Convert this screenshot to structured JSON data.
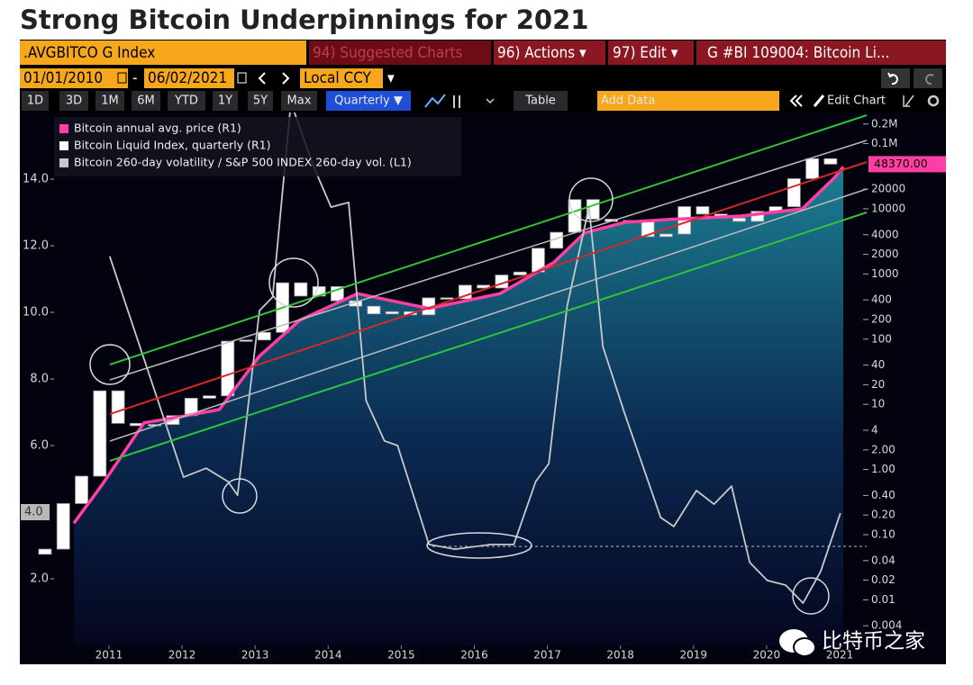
{
  "chart_data": {
    "type": "candlestick",
    "title": "Strong Bitcoin Underpinnings for 2021",
    "xlim": [
      2010.28,
      2021.87
    ],
    "xticks": [
      {
        "value": 2011.5,
        "label": "2011"
      },
      {
        "value": 2012.5,
        "label": "2012"
      },
      {
        "value": 2013.5,
        "label": "2013"
      },
      {
        "value": 2014.5,
        "label": "2014"
      },
      {
        "value": 2015.5,
        "label": "2015"
      },
      {
        "value": 2016.5,
        "label": "2016"
      },
      {
        "value": 2017.5,
        "label": "2017"
      },
      {
        "value": 2018.5,
        "label": "2018"
      },
      {
        "value": 2019.5,
        "label": "2019"
      },
      {
        "value": 2020.5,
        "label": "2020"
      },
      {
        "value": 2021.5,
        "label": "2021"
      }
    ],
    "ylim": [
      0,
      16
    ],
    "yticks": [
      {
        "value": 2,
        "label": "2.0"
      },
      {
        "value": 6,
        "label": "6.0"
      },
      {
        "value": 8,
        "label": "8.0"
      },
      {
        "value": 10,
        "label": "10.0"
      },
      {
        "value": 12,
        "label": "12.0"
      },
      {
        "value": 14,
        "label": "14.0"
      }
    ],
    "y2lim": [
      0.002,
      300000
    ],
    "y2log": true,
    "y2ticks": [
      {
        "value": 200000,
        "label": "0.2M"
      },
      {
        "value": 100000,
        "label": "0.1M"
      },
      20000,
      10000,
      4000,
      2000,
      1000,
      400,
      200,
      100,
      40,
      20,
      10,
      4,
      {
        "value": 2,
        "label": "2.00"
      },
      {
        "value": 1,
        "label": "1.00"
      },
      {
        "value": 0.4,
        "label": "0.40"
      },
      {
        "value": 0.2,
        "label": "0.20"
      },
      {
        "value": 0.1,
        "label": "0.10"
      },
      0.04,
      0.02,
      0.01,
      0.004
    ],
    "legend": "upper left",
    "series": [
      {
        "name": "Bitcoin annual avg. price (R1)",
        "type": "line",
        "axis": "y2",
        "color": "#ff3fa4",
        "x": [
          2011.02,
          2011.4,
          2011.98,
          2012.46,
          2013.01,
          2013.56,
          2014.11,
          2014.9,
          2015.88,
          2016.85,
          2017.59,
          2018.01,
          2018.56,
          2019.17,
          2020.15,
          2020.99,
          2021.43,
          2021.55
        ],
        "values": [
          0.15,
          0.57,
          5.2,
          6.4,
          8.3,
          55,
          195,
          500,
          295,
          500,
          1510,
          4270,
          6200,
          6870,
          7750,
          10000,
          30000,
          44000
        ]
      },
      {
        "name": "Bitcoin Liquid Index, quarterly (R1)",
        "type": "candlestick",
        "axis": "y2",
        "color": "#ffffff",
        "x": [
          2010.625,
          2010.875,
          2011.125,
          2011.375,
          2011.625,
          2011.875,
          2012.125,
          2012.375,
          2012.625,
          2012.875,
          2013.125,
          2013.375,
          2013.625,
          2013.875,
          2014.125,
          2014.375,
          2014.625,
          2014.875,
          2015.125,
          2015.375,
          2015.625,
          2015.875,
          2016.125,
          2016.375,
          2016.625,
          2016.875,
          2017.125,
          2017.375,
          2017.625,
          2017.875,
          2018.125,
          2018.375,
          2018.625,
          2018.875,
          2019.125,
          2019.375,
          2019.625,
          2019.875,
          2020.125,
          2020.375,
          2020.625,
          2020.875,
          2021.125,
          2021.375
        ],
        "open": [
          0.05,
          0.06,
          0.3,
          0.79,
          16.1,
          5.1,
          4.7,
          4.9,
          6.7,
          12.4,
          13.5,
          93,
          97,
          127,
          732,
          458,
          640,
          387,
          320,
          244,
          264,
          236,
          430,
          416,
          673,
          609,
          964,
          1071,
          2480,
          4360,
          13860,
          6930,
          6390,
          6630,
          3740,
          4100,
          10800,
          8290,
          7190,
          6420,
          9140,
          10780,
          28990,
          58800
        ],
        "close": [
          0.06,
          0.3,
          0.79,
          16.1,
          5.1,
          4.7,
          4.9,
          6.7,
          12.4,
          13.5,
          93,
          97,
          127,
          732,
          458,
          640,
          387,
          320,
          244,
          264,
          236,
          430,
          416,
          673,
          609,
          964,
          1071,
          2480,
          4360,
          13860,
          6930,
          6390,
          6630,
          3740,
          4100,
          10800,
          8290,
          7190,
          6420,
          9140,
          10780,
          28990,
          58800,
          48370
        ]
      },
      {
        "name": "Bitcoin 260-day volatility / S&P 500 INDEX 260-day vol. (L1)",
        "type": "line",
        "axis": "y",
        "color": "#c8c8c8",
        "x": [
          2011.51,
          2012.52,
          2012.83,
          2013.13,
          2013.26,
          2013.56,
          2013.74,
          2013.99,
          2014.3,
          2014.54,
          2014.78,
          2015.02,
          2015.27,
          2015.45,
          2015.88,
          2016.24,
          2016.73,
          2017.04,
          2017.34,
          2017.52,
          2017.77,
          2018.07,
          2018.26,
          2018.56,
          2019.05,
          2019.23,
          2019.54,
          2019.78,
          2020.02,
          2020.27,
          2020.51,
          2020.76,
          2021.0,
          2021.24,
          2021.51
        ],
        "values": [
          11.68,
          5.05,
          5.32,
          4.92,
          4.51,
          10.05,
          10.46,
          16.3,
          14.38,
          13.16,
          13.3,
          7.35,
          6.14,
          6.0,
          3.03,
          2.89,
          3.03,
          3.03,
          4.92,
          5.46,
          10.19,
          13.16,
          8.97,
          6.95,
          3.84,
          3.57,
          4.65,
          4.24,
          4.78,
          2.49,
          1.95,
          1.81,
          1.27,
          2.22,
          3.97
        ]
      }
    ],
    "annotations": [
      {
        "text": "4.0",
        "value": 4,
        "axis": "y",
        "color": "#b8b8b8"
      },
      {
        "text": "48370.00",
        "value": 48370,
        "axis": "y2",
        "color": "#ff3fa4"
      }
    ]
  },
  "toolbar": {
    "row1": [
      ".AVGBITCO G Index",
      "94) Suggested Charts",
      "96) Actions ▾",
      "97) Edit ▾",
      "G #BI 109004: Bitcoin Li..."
    ],
    "row2": {
      "start": "01/01/2010",
      "dash": "-",
      "end": "06/02/2021",
      "currency": "Local CCY",
      "menu": "▾"
    },
    "row3": [
      "1D",
      "3D",
      "1M",
      "6M",
      "YTD",
      "1Y",
      "5Y",
      "Max",
      "Quarterly ▼",
      "Table",
      "Add Data",
      "Edit Chart"
    ]
  },
  "watermark": "比特币之家"
}
